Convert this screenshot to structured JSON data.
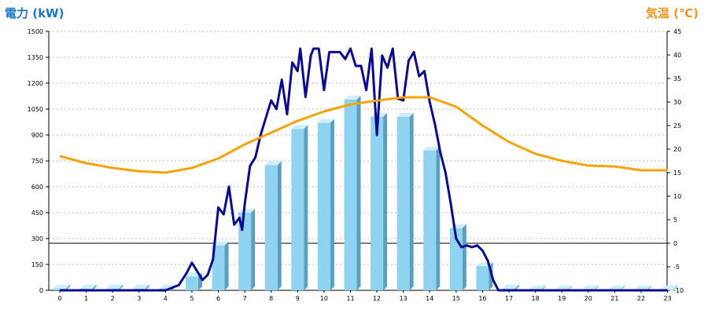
{
  "chart_data": {
    "type": "bar",
    "title": "",
    "xlabel": "",
    "y_left_label": "電力 (kW)",
    "y_right_label": "気温 (℃)",
    "y_left_lim": [
      0,
      1500
    ],
    "y_left_ticks": [
      0,
      150,
      300,
      450,
      600,
      750,
      900,
      1050,
      1200,
      1350,
      1500
    ],
    "y_right_lim": [
      -10,
      45
    ],
    "y_right_ticks": [
      -10,
      -5,
      0,
      5,
      10,
      15,
      20,
      25,
      30,
      35,
      40,
      45
    ],
    "categories": [
      "0",
      "1",
      "2",
      "3",
      "4",
      "5",
      "6",
      "7",
      "8",
      "9",
      "10",
      "11",
      "12",
      "13",
      "14",
      "15",
      "16",
      "17",
      "18",
      "19",
      "20",
      "21",
      "22",
      "23"
    ],
    "grid": true,
    "series": [
      {
        "kind": "bar",
        "axis": "left",
        "values": [
          10,
          10,
          10,
          10,
          10,
          80,
          260,
          450,
          725,
          935,
          970,
          1105,
          1005,
          1005,
          810,
          360,
          140,
          10,
          5,
          5,
          5,
          5,
          5,
          5
        ],
        "color": "#87ceeb"
      },
      {
        "kind": "line",
        "axis": "left",
        "x": [
          0,
          1,
          2,
          3,
          4,
          4.5,
          4.8,
          5,
          5.2,
          5.4,
          5.6,
          5.8,
          6,
          6.2,
          6.4,
          6.6,
          6.8,
          6.9,
          7,
          7.2,
          7.4,
          7.6,
          7.8,
          8,
          8.2,
          8.4,
          8.6,
          8.8,
          9,
          9.1,
          9.3,
          9.5,
          9.6,
          9.8,
          10,
          10.2,
          10.4,
          10.6,
          10.8,
          11,
          11.2,
          11.4,
          11.6,
          11.8,
          12,
          12.2,
          12.4,
          12.6,
          12.8,
          13,
          13.2,
          13.4,
          13.6,
          13.8,
          14,
          14.2,
          14.4,
          14.6,
          14.8,
          15,
          15.2,
          15.4,
          15.6,
          15.8,
          16,
          16.2,
          16.4,
          16.6,
          17,
          18,
          19,
          20,
          21,
          22,
          23
        ],
        "values": [
          0,
          0,
          0,
          0,
          0,
          30,
          100,
          160,
          110,
          60,
          90,
          180,
          480,
          440,
          600,
          380,
          420,
          350,
          500,
          720,
          770,
          900,
          1000,
          1100,
          1050,
          1220,
          1020,
          1320,
          1270,
          1400,
          1120,
          1360,
          1400,
          1400,
          1160,
          1380,
          1380,
          1380,
          1340,
          1400,
          1300,
          1300,
          1160,
          1400,
          900,
          1360,
          1290,
          1400,
          1110,
          1100,
          1330,
          1380,
          1240,
          1270,
          1090,
          960,
          800,
          680,
          500,
          300,
          250,
          260,
          250,
          260,
          230,
          170,
          60,
          0,
          0,
          0,
          0,
          0,
          0,
          0,
          0
        ],
        "color": "#0a0a8c"
      },
      {
        "kind": "line",
        "axis": "right",
        "x": [
          0,
          1,
          2,
          3,
          4,
          5,
          6,
          7,
          8,
          9,
          10,
          11,
          12,
          13,
          14,
          15,
          16,
          17,
          18,
          19,
          20,
          21,
          22,
          23
        ],
        "values": [
          18.5,
          17,
          16,
          15.3,
          15,
          16,
          18,
          21,
          23.5,
          26,
          28,
          29.5,
          30.3,
          31,
          31,
          29,
          25,
          21.5,
          19,
          17.5,
          16.5,
          16.3,
          15.5,
          15.5
        ],
        "color": "#f5a30a"
      }
    ]
  },
  "colors": {
    "left_label": "#1a78c8",
    "right_label": "#f0961e",
    "grid": "#bbbbbb",
    "axis": "#000000",
    "bar_front": "#8fd3f0",
    "bar_side": "#5a9fc0",
    "bar_top": "#cdeefc"
  }
}
